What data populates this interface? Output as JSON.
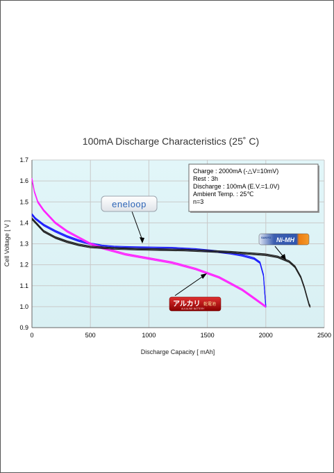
{
  "chart_data": {
    "type": "line",
    "title": "100mA Discharge Characteristics (25˚ C)",
    "xlabel": "Discharge Capacity [ mAh]",
    "ylabel": "Cell Voltage [ V ]",
    "xlim": [
      0,
      2500
    ],
    "ylim": [
      0.9,
      1.7
    ],
    "xticks": [
      "0",
      "500",
      "1000",
      "1500",
      "2000",
      "2500"
    ],
    "yticks": [
      "0.9",
      "1.0",
      "1.1",
      "1.2",
      "1.3",
      "1.4",
      "1.5",
      "1.6",
      "1.7"
    ],
    "grid": true,
    "conditions": [
      "Charge : 2000mA (-△V=10mV)",
      "Rest : 3h",
      "Discharge : 100mA (E.V.=1.0V)",
      "Ambient Temp. : 25℃",
      "n=3"
    ],
    "labels": {
      "eneloop": "eneloop",
      "alkaline": "アルカリ",
      "alkaline_small": "乾電池",
      "alkaline_sub": "ALKALINE BATTERY",
      "nimh_brand": "SANYO",
      "nimh_model": "Ni-MH"
    },
    "series": [
      {
        "color": "#1a1aff",
        "x": [
          0,
          30,
          100,
          200,
          300,
          400,
          500,
          600,
          700,
          800,
          1000,
          1200,
          1400,
          1550,
          1700,
          1800,
          1900,
          1950,
          1980,
          2000
        ],
        "y": [
          1.44,
          1.42,
          1.39,
          1.36,
          1.335,
          1.315,
          1.3,
          1.29,
          1.285,
          1.283,
          1.281,
          1.279,
          1.273,
          1.265,
          1.255,
          1.245,
          1.23,
          1.21,
          1.15,
          1.0
        ]
      },
      {
        "color": "#ff22ff",
        "x": [
          0,
          20,
          50,
          100,
          200,
          300,
          400,
          500,
          600,
          700,
          800,
          1000,
          1200,
          1400,
          1500,
          1600,
          1700,
          1800,
          1900,
          1950,
          2000
        ],
        "y": [
          1.61,
          1.55,
          1.5,
          1.46,
          1.4,
          1.36,
          1.33,
          1.3,
          1.28,
          1.265,
          1.25,
          1.23,
          1.21,
          1.18,
          1.16,
          1.14,
          1.11,
          1.08,
          1.04,
          1.02,
          1.0
        ]
      },
      {
        "color": "#222222",
        "x": [
          0,
          50,
          100,
          200,
          300,
          400,
          500,
          700,
          900,
          1100,
          1300,
          1500,
          1700,
          1900,
          2000,
          2100,
          2200,
          2250,
          2300,
          2330,
          2350,
          2370,
          2380
        ],
        "y": [
          1.42,
          1.39,
          1.36,
          1.33,
          1.31,
          1.295,
          1.285,
          1.278,
          1.274,
          1.272,
          1.27,
          1.265,
          1.26,
          1.252,
          1.248,
          1.238,
          1.215,
          1.19,
          1.14,
          1.09,
          1.05,
          1.01,
          1.0
        ]
      }
    ]
  }
}
